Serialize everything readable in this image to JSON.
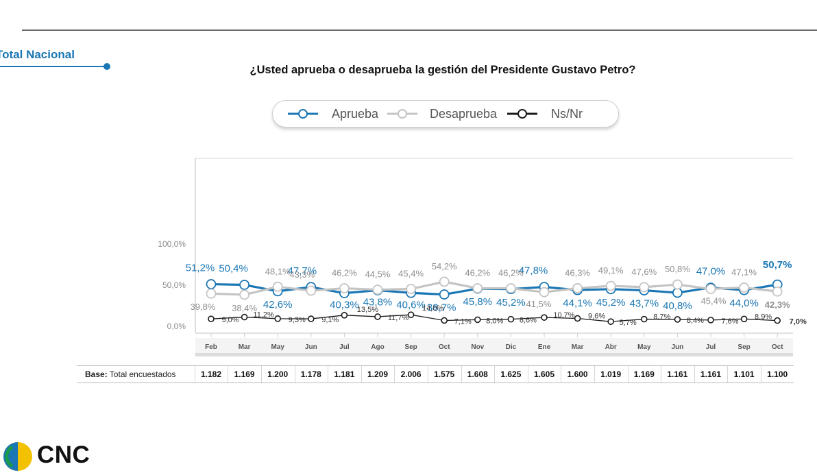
{
  "header": {
    "section_label": "Total Nacional"
  },
  "brand": {
    "logo_text": "CNC"
  },
  "colors": {
    "aprueba": "#1a76b4",
    "desaprueba": "#c4c4c4",
    "nsnr": "#1a1a1a",
    "axis": "#9a9a9a"
  },
  "chart_data": {
    "type": "line",
    "title": "¿Usted aprueba o desaprueba la gestión del Presidente Gustavo Petro?",
    "categories": [
      "Feb",
      "Mar",
      "May",
      "Jun",
      "Jul",
      "Ago",
      "Sep",
      "Oct",
      "Nov",
      "Dic",
      "Ene",
      "Mar",
      "Abr",
      "May",
      "Jun",
      "Jul",
      "Sep",
      "Oct"
    ],
    "ylim": [
      0,
      100
    ],
    "yticks": [
      "0,0%",
      "50,0%",
      "100,0%"
    ],
    "grid": false,
    "legend_position": "top-center",
    "series": [
      {
        "name": "Aprueba",
        "values": [
          51.2,
          50.4,
          42.6,
          47.7,
          40.3,
          43.8,
          40.6,
          38.7,
          45.8,
          45.2,
          47.8,
          44.1,
          45.2,
          43.7,
          40.8,
          47.0,
          44.0,
          50.7
        ],
        "labels": [
          "51,2%",
          "50,4%",
          "42,6%",
          "47,7%",
          "40,3%",
          "43,8%",
          "40,6%",
          "38,7%",
          "45,8%",
          "45,2%",
          "47,8%",
          "44,1%",
          "45,2%",
          "43,7%",
          "40,8%",
          "47,0%",
          "44,0%",
          "50,7%"
        ]
      },
      {
        "name": "Desaprueba",
        "values": [
          39.8,
          38.4,
          48.1,
          43.3,
          46.2,
          44.5,
          45.4,
          54.2,
          46.2,
          46.2,
          41.5,
          46.3,
          49.1,
          47.6,
          50.8,
          45.4,
          47.1,
          42.3
        ],
        "labels": [
          "39,8%",
          "38,4%",
          "48,1%",
          "43,3%",
          "46,2%",
          "44,5%",
          "45,4%",
          "54,2%",
          "46,2%",
          "46,2%",
          "41,5%",
          "46,3%",
          "49,1%",
          "47,6%",
          "50,8%",
          "45,4%",
          "47,1%",
          "42,3%"
        ]
      },
      {
        "name": "Ns/Nr",
        "values": [
          9.0,
          11.2,
          9.3,
          9.1,
          13.5,
          11.7,
          14.0,
          7.1,
          8.0,
          8.6,
          10.7,
          9.6,
          5.7,
          8.7,
          8.4,
          7.6,
          8.9,
          7.0
        ],
        "labels": [
          "9,0%",
          "11,2%",
          "9,3%",
          "9,1%",
          "13,5%",
          "11,7%",
          "14,0%",
          "7,1%",
          "8,0%",
          "8,6%",
          "10,7%",
          "9,6%",
          "5,7%",
          "8,7%",
          "8,4%",
          "7,6%",
          "8,9%",
          "7,0%"
        ]
      }
    ]
  },
  "base": {
    "label_bold": "Base:",
    "label_rest": " Total encuestados",
    "values": [
      "1.182",
      "1.169",
      "1.200",
      "1.178",
      "1.181",
      "1.209",
      "2.006",
      "1.575",
      "1.608",
      "1.625",
      "1.605",
      "1.600",
      "1.019",
      "1.169",
      "1.161",
      "1.161",
      "1.101",
      "1.100"
    ]
  }
}
